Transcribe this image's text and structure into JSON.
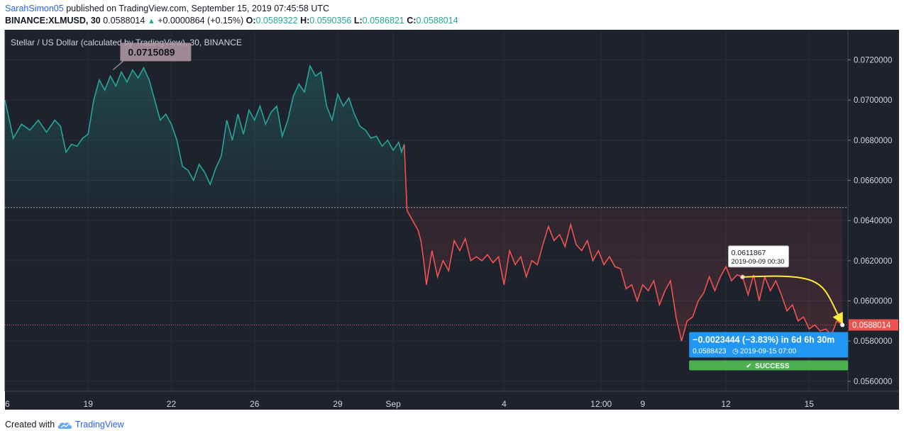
{
  "header": {
    "author": "SarahSimon05",
    "published_text": "published on TradingView.com, September 15, 2019 07:45:58 UTC",
    "symbol_interval": "BINANCE:XLMUSD, 30",
    "last_value": "0.0588014",
    "change": "+0.0000864 (+0.15%)",
    "o_label": "O:",
    "o_value": "0.0589322",
    "h_label": "H:",
    "h_value": "0.0590356",
    "l_label": "L:",
    "l_value": "0.0586821",
    "c_label": "C:",
    "c_value": "0.0588014"
  },
  "footer": {
    "created_with": "Created with",
    "brand": "TradingView"
  },
  "colors": {
    "up": "#26a69a",
    "down": "#ef5350",
    "measure_box": "#2196f3",
    "success": "#4caf50",
    "arrow": "#ffeb3b",
    "background": "#1e222d"
  },
  "chart_data": {
    "type": "line",
    "title": "Stellar / US Dollar (calculated by TradingView), 30, BINANCE",
    "ylim": [
      0.0555,
      0.0735
    ],
    "yticks": [
      "0.0720000",
      "0.0700000",
      "0.0680000",
      "0.0660000",
      "0.0640000",
      "0.0620000",
      "0.0600000",
      "0.0580000",
      "0.0560000"
    ],
    "ytick_values": [
      0.072,
      0.07,
      0.068,
      0.066,
      0.064,
      0.062,
      0.06,
      0.058,
      0.056
    ],
    "xlim": [
      16.0,
      46.4
    ],
    "xticks": [
      "6",
      "19",
      "22",
      "26",
      "29",
      "Sep",
      "4",
      "12:00",
      "9",
      "12",
      "15"
    ],
    "xtick_values": [
      16.0,
      19.0,
      22.0,
      25.0,
      28.0,
      30.0,
      34.0,
      37.5,
      39.0,
      42.0,
      45.0
    ],
    "baseline": 0.06465,
    "last_price": 0.0588014,
    "last_price_label": "0.0588014",
    "series": [
      {
        "points": [
          [
            16.0,
            0.07
          ],
          [
            16.3,
            0.0681
          ],
          [
            16.6,
            0.0688
          ],
          [
            16.9,
            0.0685
          ],
          [
            17.2,
            0.069
          ],
          [
            17.5,
            0.0684
          ],
          [
            17.8,
            0.069
          ],
          [
            18.0,
            0.0687
          ],
          [
            18.2,
            0.0674
          ],
          [
            18.4,
            0.0678
          ],
          [
            18.6,
            0.0677
          ],
          [
            18.8,
            0.0681
          ],
          [
            19.0,
            0.0683
          ],
          [
            19.2,
            0.07
          ],
          [
            19.4,
            0.071
          ],
          [
            19.6,
            0.0705
          ],
          [
            19.8,
            0.0712
          ],
          [
            20.0,
            0.0707
          ],
          [
            20.2,
            0.0714
          ],
          [
            20.4,
            0.0709
          ],
          [
            20.6,
            0.0715
          ],
          [
            20.8,
            0.0711
          ],
          [
            21.0,
            0.0716
          ],
          [
            21.2,
            0.071
          ],
          [
            21.4,
            0.07
          ],
          [
            21.6,
            0.069
          ],
          [
            21.8,
            0.0693
          ],
          [
            22.0,
            0.0688
          ],
          [
            22.2,
            0.068
          ],
          [
            22.4,
            0.0667
          ],
          [
            22.6,
            0.0665
          ],
          [
            22.8,
            0.066
          ],
          [
            23.0,
            0.0668
          ],
          [
            23.2,
            0.0664
          ],
          [
            23.4,
            0.0658
          ],
          [
            23.6,
            0.0666
          ],
          [
            23.8,
            0.0672
          ],
          [
            24.0,
            0.069
          ],
          [
            24.2,
            0.068
          ],
          [
            24.4,
            0.0693
          ],
          [
            24.6,
            0.0683
          ],
          [
            24.8,
            0.0695
          ],
          [
            25.0,
            0.069
          ],
          [
            25.2,
            0.0697
          ],
          [
            25.4,
            0.0688
          ],
          [
            25.6,
            0.0694
          ],
          [
            25.8,
            0.0697
          ],
          [
            26.0,
            0.0682
          ],
          [
            26.2,
            0.069
          ],
          [
            26.4,
            0.0702
          ],
          [
            26.6,
            0.0708
          ],
          [
            26.8,
            0.0704
          ],
          [
            27.0,
            0.0717
          ],
          [
            27.2,
            0.0712
          ],
          [
            27.4,
            0.0714
          ],
          [
            27.6,
            0.0697
          ],
          [
            27.8,
            0.069
          ],
          [
            28.0,
            0.0703
          ],
          [
            28.2,
            0.0697
          ],
          [
            28.4,
            0.0701
          ],
          [
            28.6,
            0.0693
          ],
          [
            28.8,
            0.0687
          ],
          [
            29.0,
            0.0685
          ],
          [
            29.2,
            0.0681
          ],
          [
            29.4,
            0.0682
          ],
          [
            29.6,
            0.0677
          ],
          [
            29.8,
            0.068
          ],
          [
            30.0,
            0.0675
          ],
          [
            30.2,
            0.0679
          ],
          [
            30.3,
            0.0674
          ],
          [
            30.4,
            0.0678
          ],
          [
            30.5,
            0.0645
          ],
          [
            30.7,
            0.064
          ],
          [
            30.9,
            0.0635
          ],
          [
            31.0,
            0.063
          ],
          [
            31.1,
            0.062
          ],
          [
            31.2,
            0.0608
          ],
          [
            31.4,
            0.0625
          ],
          [
            31.6,
            0.0612
          ],
          [
            31.8,
            0.062
          ],
          [
            32.0,
            0.0615
          ],
          [
            32.2,
            0.063
          ],
          [
            32.4,
            0.0625
          ],
          [
            32.6,
            0.0631
          ],
          [
            32.8,
            0.062
          ],
          [
            33.0,
            0.0622
          ],
          [
            33.2,
            0.062
          ],
          [
            33.4,
            0.0623
          ],
          [
            33.6,
            0.0619
          ],
          [
            33.8,
            0.0622
          ],
          [
            34.0,
            0.0608
          ],
          [
            34.2,
            0.0625
          ],
          [
            34.4,
            0.0618
          ],
          [
            34.6,
            0.0622
          ],
          [
            34.8,
            0.0612
          ],
          [
            35.0,
            0.062
          ],
          [
            35.2,
            0.0618
          ],
          [
            35.4,
            0.0628
          ],
          [
            35.6,
            0.0637
          ],
          [
            35.8,
            0.063
          ],
          [
            36.0,
            0.0633
          ],
          [
            36.2,
            0.0627
          ],
          [
            36.4,
            0.0638
          ],
          [
            36.6,
            0.0628
          ],
          [
            36.8,
            0.0625
          ],
          [
            37.0,
            0.063
          ],
          [
            37.2,
            0.062
          ],
          [
            37.4,
            0.0625
          ],
          [
            37.6,
            0.0618
          ],
          [
            37.8,
            0.0622
          ],
          [
            38.0,
            0.0617
          ],
          [
            38.2,
            0.0616
          ],
          [
            38.4,
            0.0606
          ],
          [
            38.6,
            0.0608
          ],
          [
            38.8,
            0.06
          ],
          [
            39.0,
            0.0608
          ],
          [
            39.2,
            0.0605
          ],
          [
            39.4,
            0.061
          ],
          [
            39.6,
            0.0598
          ],
          [
            39.8,
            0.0605
          ],
          [
            40.0,
            0.061
          ],
          [
            40.2,
            0.0592
          ],
          [
            40.4,
            0.058
          ],
          [
            40.6,
            0.059
          ],
          [
            40.8,
            0.0592
          ],
          [
            41.0,
            0.06
          ],
          [
            41.2,
            0.0604
          ],
          [
            41.4,
            0.0612
          ],
          [
            41.6,
            0.0605
          ],
          [
            41.8,
            0.0612
          ],
          [
            42.0,
            0.0617
          ],
          [
            42.2,
            0.061
          ],
          [
            42.4,
            0.0613
          ],
          [
            42.6,
            0.0611867
          ],
          [
            42.8,
            0.0603
          ],
          [
            43.0,
            0.0613
          ],
          [
            43.2,
            0.06
          ],
          [
            43.4,
            0.0612
          ],
          [
            43.6,
            0.0605
          ],
          [
            43.8,
            0.061
          ],
          [
            44.0,
            0.0603
          ],
          [
            44.2,
            0.0595
          ],
          [
            44.4,
            0.0598
          ],
          [
            44.6,
            0.059
          ],
          [
            44.8,
            0.0592
          ],
          [
            45.0,
            0.0586
          ],
          [
            45.2,
            0.0588
          ],
          [
            45.4,
            0.0585
          ],
          [
            45.6,
            0.0586
          ],
          [
            45.8,
            0.0583
          ],
          [
            46.0,
            0.059
          ],
          [
            46.2,
            0.0588014
          ]
        ]
      }
    ],
    "annotations": {
      "high_label": "0.0715089",
      "high_point": [
        19.9,
        0.0715089
      ],
      "point_label_value": "0.0611867",
      "point_label_date": "2019-09-09 00:30",
      "point": [
        42.6,
        0.0611867
      ],
      "arrow_end": [
        46.2,
        0.0588014
      ],
      "measure_line1": "−0.0023444 (−3.83%) in 6d 6h 30m",
      "measure_value": "0.0588423",
      "measure_date": "2019-09-15 07:00",
      "success_label": "SUCCESS"
    }
  }
}
